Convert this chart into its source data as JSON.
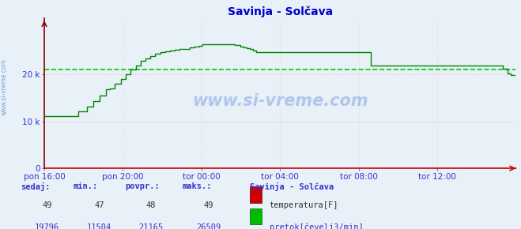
{
  "title": "Savinja - Solčava",
  "bg_color": "#e8f0f8",
  "plot_bg_color": "#e8f0f8",
  "line_color": "#008800",
  "avg_line_color": "#00cc00",
  "x_axis_color": "#cc0000",
  "y_axis_color": "#880000",
  "grid_h_color": "#ffaaaa",
  "grid_v_color": "#ffcccc",
  "x_labels": [
    "pon 16:00",
    "pon 20:00",
    "tor 00:00",
    "tor 04:00",
    "tor 08:00",
    "tor 12:00"
  ],
  "x_ticks_norm": [
    0.0,
    0.1667,
    0.3333,
    0.5,
    0.6667,
    0.8333
  ],
  "ylim": [
    0,
    32000
  ],
  "yticks": [
    0,
    10000,
    20000
  ],
  "ytick_labels": [
    "0",
    "10 k",
    "20 k"
  ],
  "avg_value": 21165,
  "flow_data": [
    11150,
    11150,
    11150,
    11150,
    11150,
    11150,
    11150,
    11150,
    11150,
    11150,
    11150,
    11150,
    11150,
    11150,
    11150,
    11150,
    11150,
    11150,
    11150,
    11150,
    11150,
    12100,
    12100,
    12100,
    12100,
    12100,
    13200,
    13200,
    13200,
    13200,
    14300,
    14300,
    14300,
    14300,
    15500,
    15500,
    15500,
    15500,
    16800,
    16800,
    17000,
    17000,
    17000,
    18000,
    18000,
    18000,
    18000,
    19000,
    19000,
    19000,
    20000,
    20000,
    20000,
    21000,
    21000,
    21000,
    22000,
    22000,
    22000,
    23000,
    23000,
    23000,
    23500,
    23500,
    23500,
    24000,
    24000,
    24000,
    24500,
    24500,
    24500,
    24800,
    24800,
    24800,
    25000,
    25000,
    25000,
    25200,
    25200,
    25200,
    25300,
    25300,
    25300,
    25400,
    25400,
    25400,
    25500,
    25500,
    25500,
    25800,
    25800,
    25800,
    26000,
    26000,
    26000,
    26200,
    26200,
    26500,
    26500,
    26500,
    26509,
    26509,
    26509,
    26509,
    26509,
    26509,
    26509,
    26509,
    26509,
    26509,
    26509,
    26509,
    26509,
    26509,
    26509,
    26509,
    26509,
    26300,
    26300,
    26300,
    26000,
    26000,
    25800,
    25800,
    25600,
    25600,
    25400,
    25400,
    25200,
    25200,
    24800,
    24800,
    24800,
    24800,
    24800,
    24800,
    24800,
    24800,
    24800,
    24800,
    24800,
    24800,
    24800,
    24800,
    24800,
    24800,
    24800,
    24800,
    24800,
    24800,
    24800,
    24800,
    24800,
    24800,
    24800,
    24800,
    24800,
    24800,
    24800,
    24800,
    24800,
    24800,
    24800,
    24800,
    24800,
    24800,
    24800,
    24800,
    24800,
    24800,
    24800,
    24800,
    24800,
    24800,
    24800,
    24800,
    24800,
    24800,
    24800,
    24800,
    24800,
    24800,
    24800,
    24800,
    24800,
    24800,
    24800,
    24800,
    24800,
    24800,
    24800,
    24800,
    24800,
    24800,
    24800,
    24800,
    24800,
    24800,
    24800,
    24800,
    22000,
    22000,
    22000,
    22000,
    22000,
    22000,
    22000,
    22000,
    22000,
    22000,
    22000,
    22000,
    22000,
    22000,
    22000,
    22000,
    22000,
    22000,
    22000,
    22000,
    22000,
    22000,
    22000,
    22000,
    22000,
    22000,
    22000,
    22000,
    22000,
    22000,
    22000,
    22000,
    22000,
    22000,
    22000,
    22000,
    22000,
    22000,
    22000,
    22000,
    22000,
    22000,
    22000,
    22000,
    22000,
    22000,
    22000,
    22000,
    22000,
    22000,
    22000,
    22000,
    22000,
    22000,
    22000,
    22000,
    22000,
    22000,
    22000,
    22000,
    22000,
    22000,
    22000,
    22000,
    22000,
    22000,
    22000,
    22000,
    22000,
    22000,
    22000,
    22000,
    22000,
    22000,
    22000,
    22000,
    22000,
    22000,
    22000,
    22000,
    22000,
    21200,
    21200,
    21200,
    20200,
    20200,
    19900,
    19900,
    19900,
    19900
  ],
  "table_headers": [
    "sedaj:",
    "min.:",
    "povpr.:",
    "maks.:"
  ],
  "temp_row": [
    "49",
    "47",
    "48",
    "49"
  ],
  "flow_row": [
    "19796",
    "11504",
    "21165",
    "26509"
  ],
  "legend_title": "Savinja - Solčava",
  "legend_temp_label": "temperatura[F]",
  "legend_flow_label": "pretok[čevelj3/min]",
  "temp_color": "#cc0000",
  "flow_color": "#00bb00",
  "watermark": "www.si-vreme.com",
  "watermark_color": "#3366cc",
  "watermark_alpha": 0.3,
  "side_label": "www.si-vreme.com"
}
